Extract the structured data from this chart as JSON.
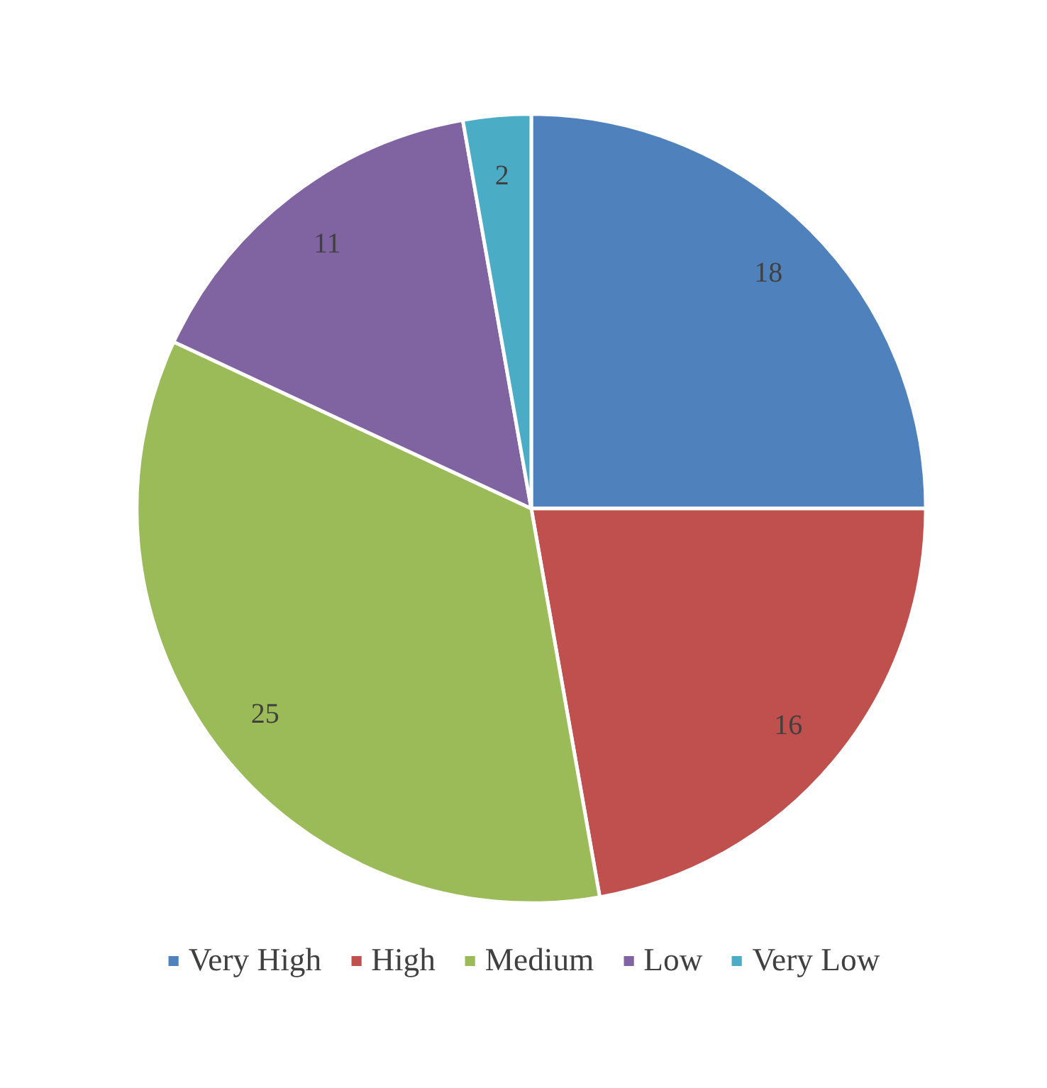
{
  "chart_data": {
    "type": "pie",
    "categories": [
      "Very High",
      "High",
      "Medium",
      "Low",
      "Very Low"
    ],
    "values": [
      18,
      16,
      25,
      11,
      2
    ],
    "colors": [
      "#4f81bd",
      "#c0504d",
      "#9bbb59",
      "#8064a2",
      "#4bacc6"
    ],
    "data_labels": true,
    "legend": "bottom"
  }
}
